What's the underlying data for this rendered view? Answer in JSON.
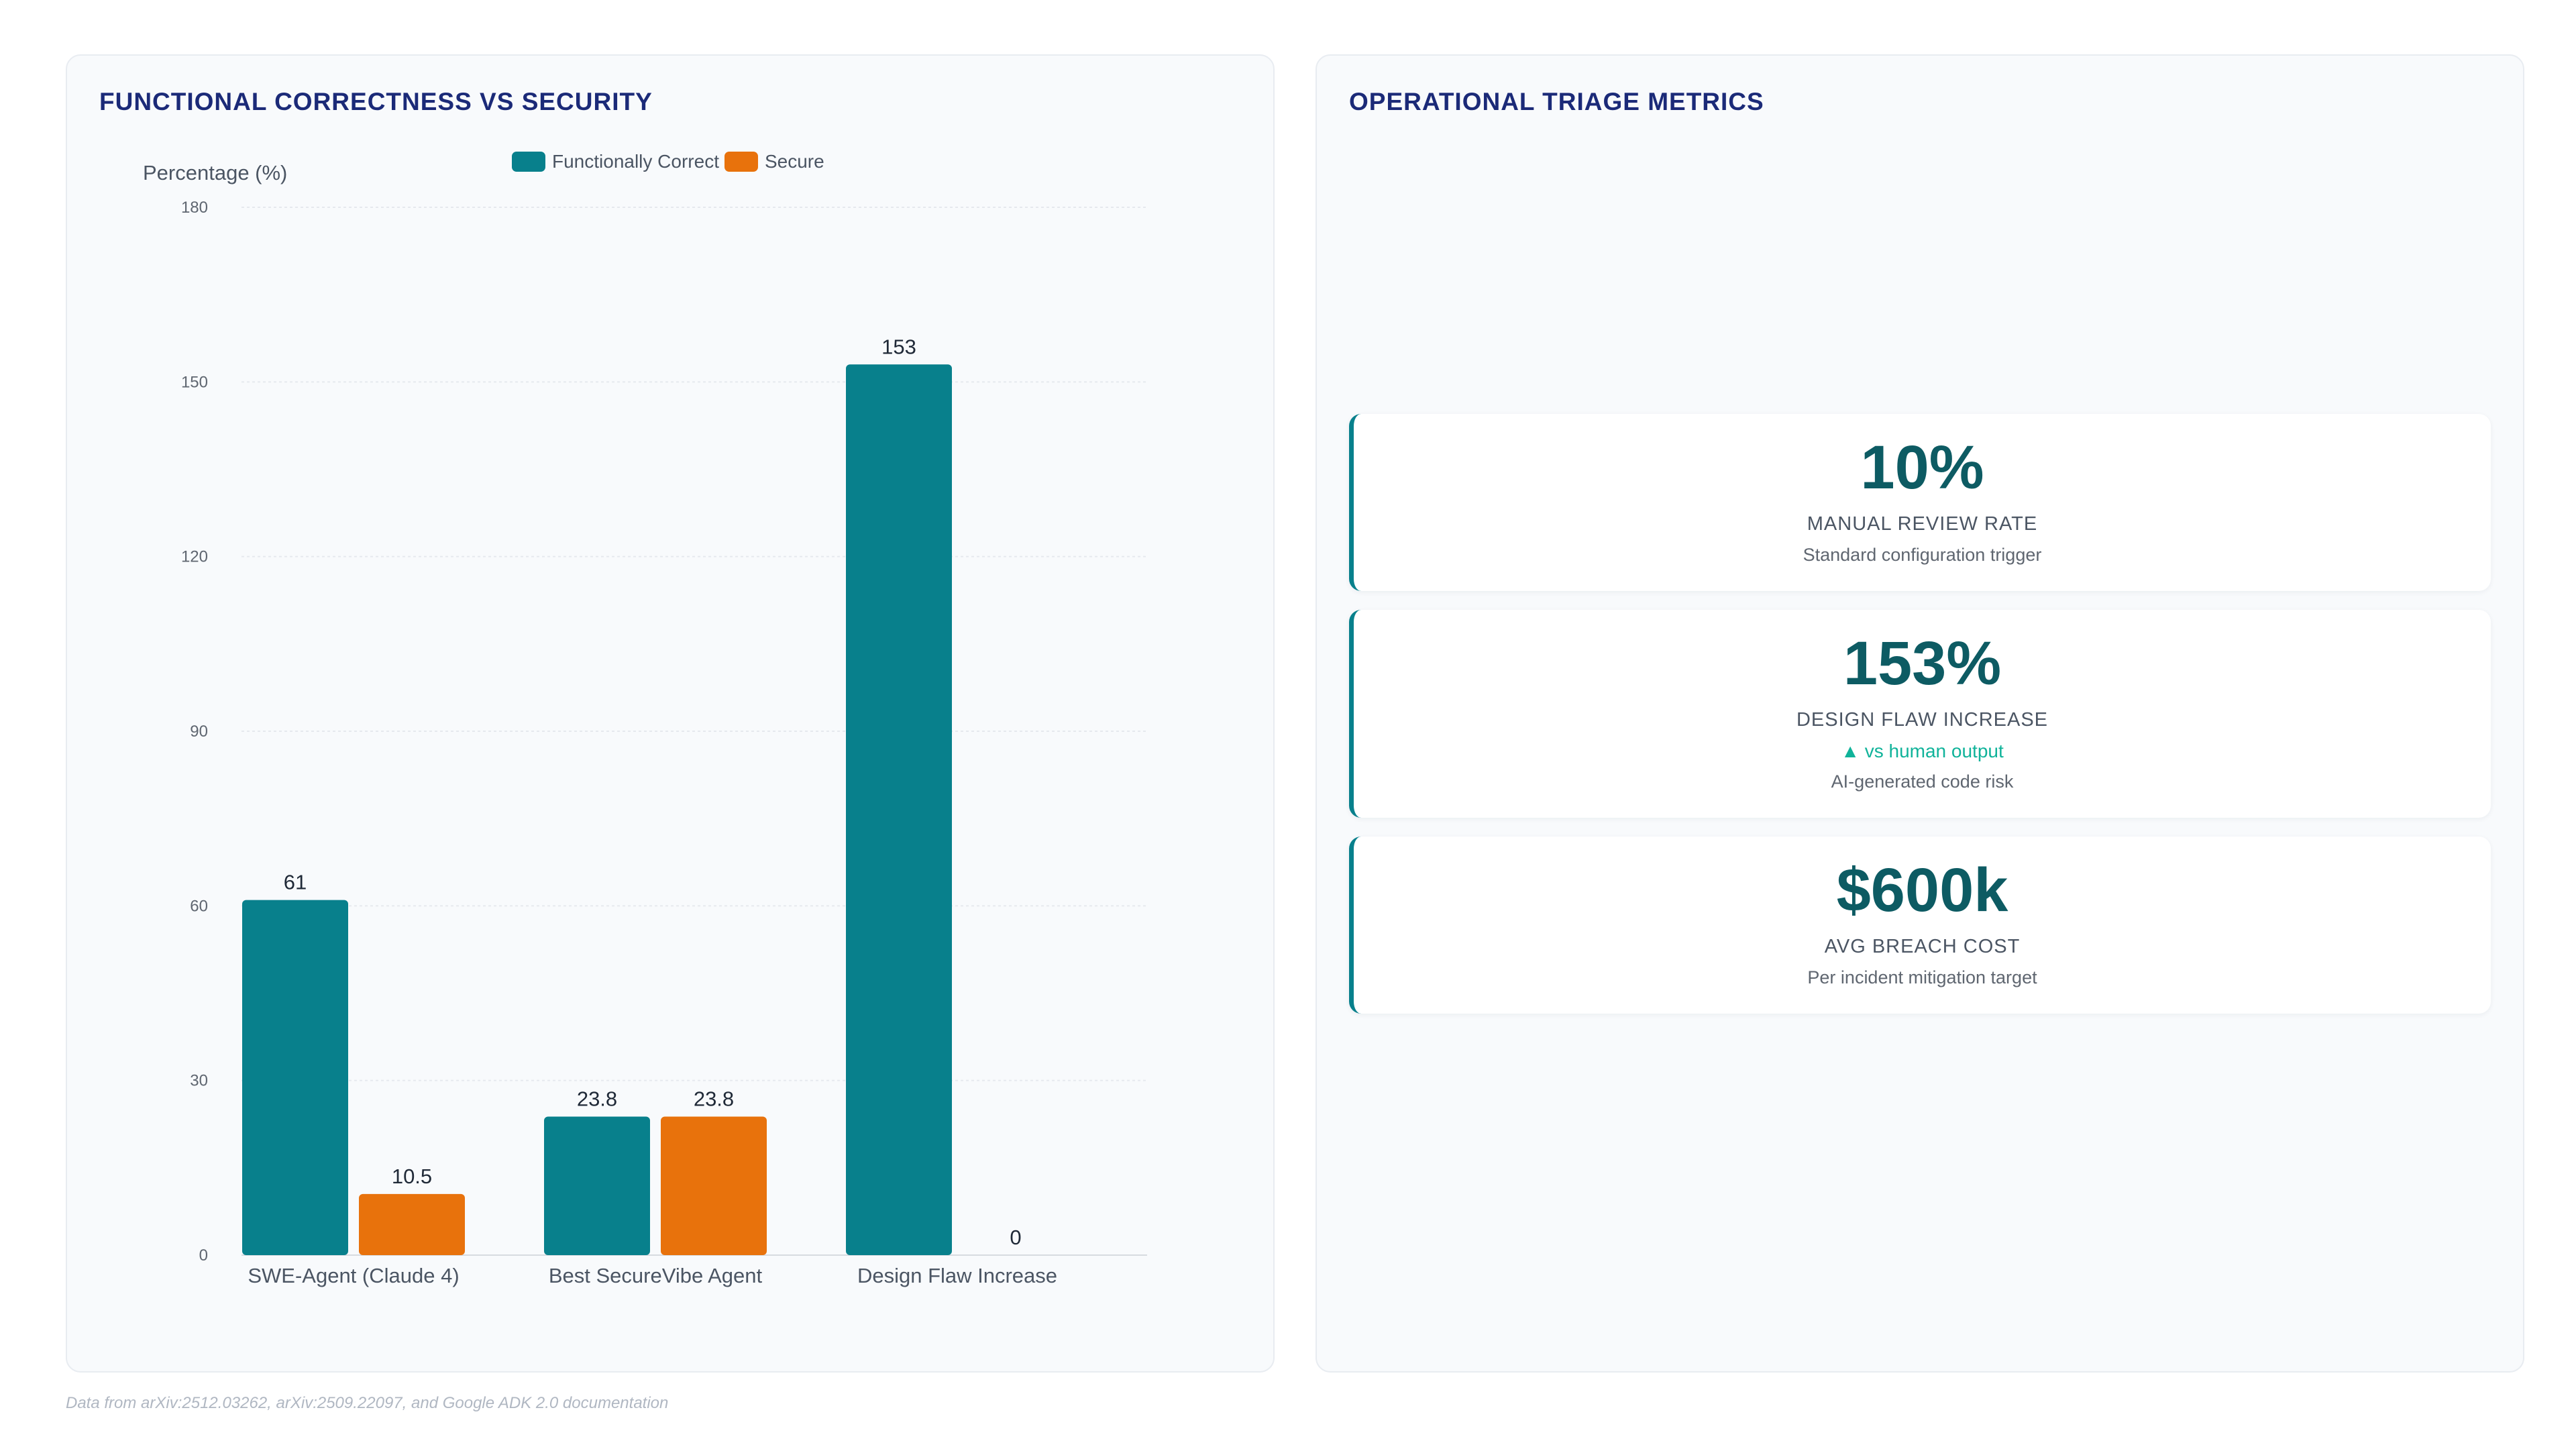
{
  "left_panel": {
    "title": "FUNCTIONAL CORRECTNESS VS SECURITY"
  },
  "right_panel": {
    "title": "OPERATIONAL TRIAGE METRICS",
    "metrics": [
      {
        "value": "10%",
        "label": "MANUAL REVIEW RATE",
        "trend": "",
        "sub": "Standard configuration trigger"
      },
      {
        "value": "153%",
        "label": "DESIGN FLAW INCREASE",
        "trend": "▲ vs human output",
        "sub": "AI-generated code risk"
      },
      {
        "value": "$600k",
        "label": "AVG BREACH COST",
        "trend": "",
        "sub": "Per incident mitigation target"
      }
    ]
  },
  "footnote": "Data from arXiv:2512.03262, arXiv:2509.22097, and Google ADK 2.0 documentation",
  "colors": {
    "functional": "#08808c",
    "secure": "#e8720c",
    "title": "#1b2a78",
    "metric_value": "#0d5b63",
    "trend": "#10b39a"
  },
  "chart_data": {
    "type": "bar",
    "ylabel": "Percentage (%)",
    "xlabel": "",
    "ylim": [
      0,
      180
    ],
    "yticks": [
      0,
      30,
      60,
      90,
      120,
      150,
      180
    ],
    "grid": true,
    "legend": "top-center",
    "categories": [
      "SWE-Agent (Claude 4)",
      "Best SecureVibe Agent",
      "Design Flaw Increase"
    ],
    "series": [
      {
        "name": "Functionally Correct",
        "color": "#08808c",
        "values": [
          61,
          23.8,
          153
        ]
      },
      {
        "name": "Secure",
        "color": "#e8720c",
        "values": [
          10.5,
          23.8,
          0
        ]
      }
    ]
  }
}
